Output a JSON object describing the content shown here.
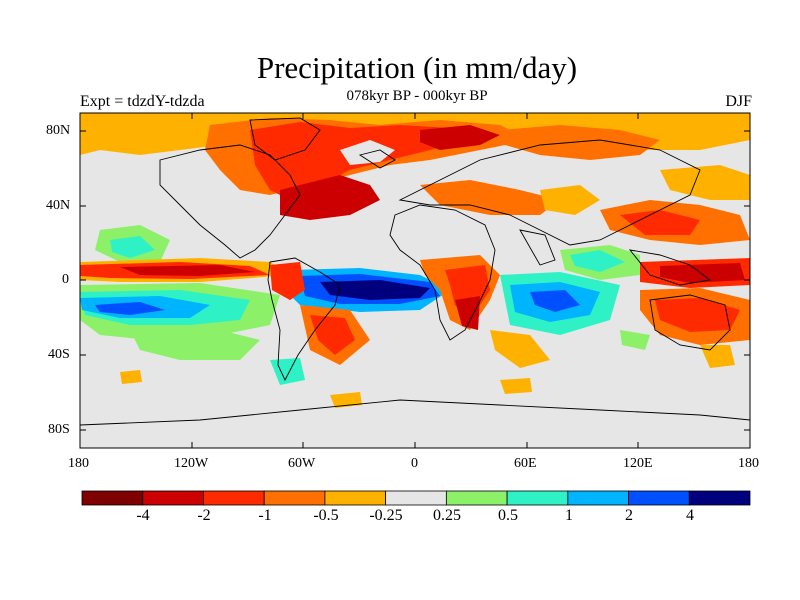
{
  "title": "Precipitation (in mm/day)",
  "subtitle": "078kyr BP - 000kyr BP",
  "experiment_label": "Expt = tdzdY-tdzda",
  "season_label": "DJF",
  "lat_ticks": [
    "80N",
    "40N",
    "0",
    "40S",
    "80S"
  ],
  "lon_ticks": [
    "180",
    "120W",
    "60W",
    "0",
    "60E",
    "120E",
    "180"
  ],
  "colorbar": {
    "colors": [
      "#7f0000",
      "#cc0000",
      "#ff2a00",
      "#ff7000",
      "#ffb100",
      "#e6e6e6",
      "#8cf069",
      "#2ef2c6",
      "#00b4ff",
      "#0050ff",
      "#00007f"
    ],
    "labels": [
      "-4",
      "-2",
      "-1",
      "-0.5",
      "-0.25",
      "0.25",
      "0.5",
      "1",
      "2",
      "4"
    ]
  }
}
